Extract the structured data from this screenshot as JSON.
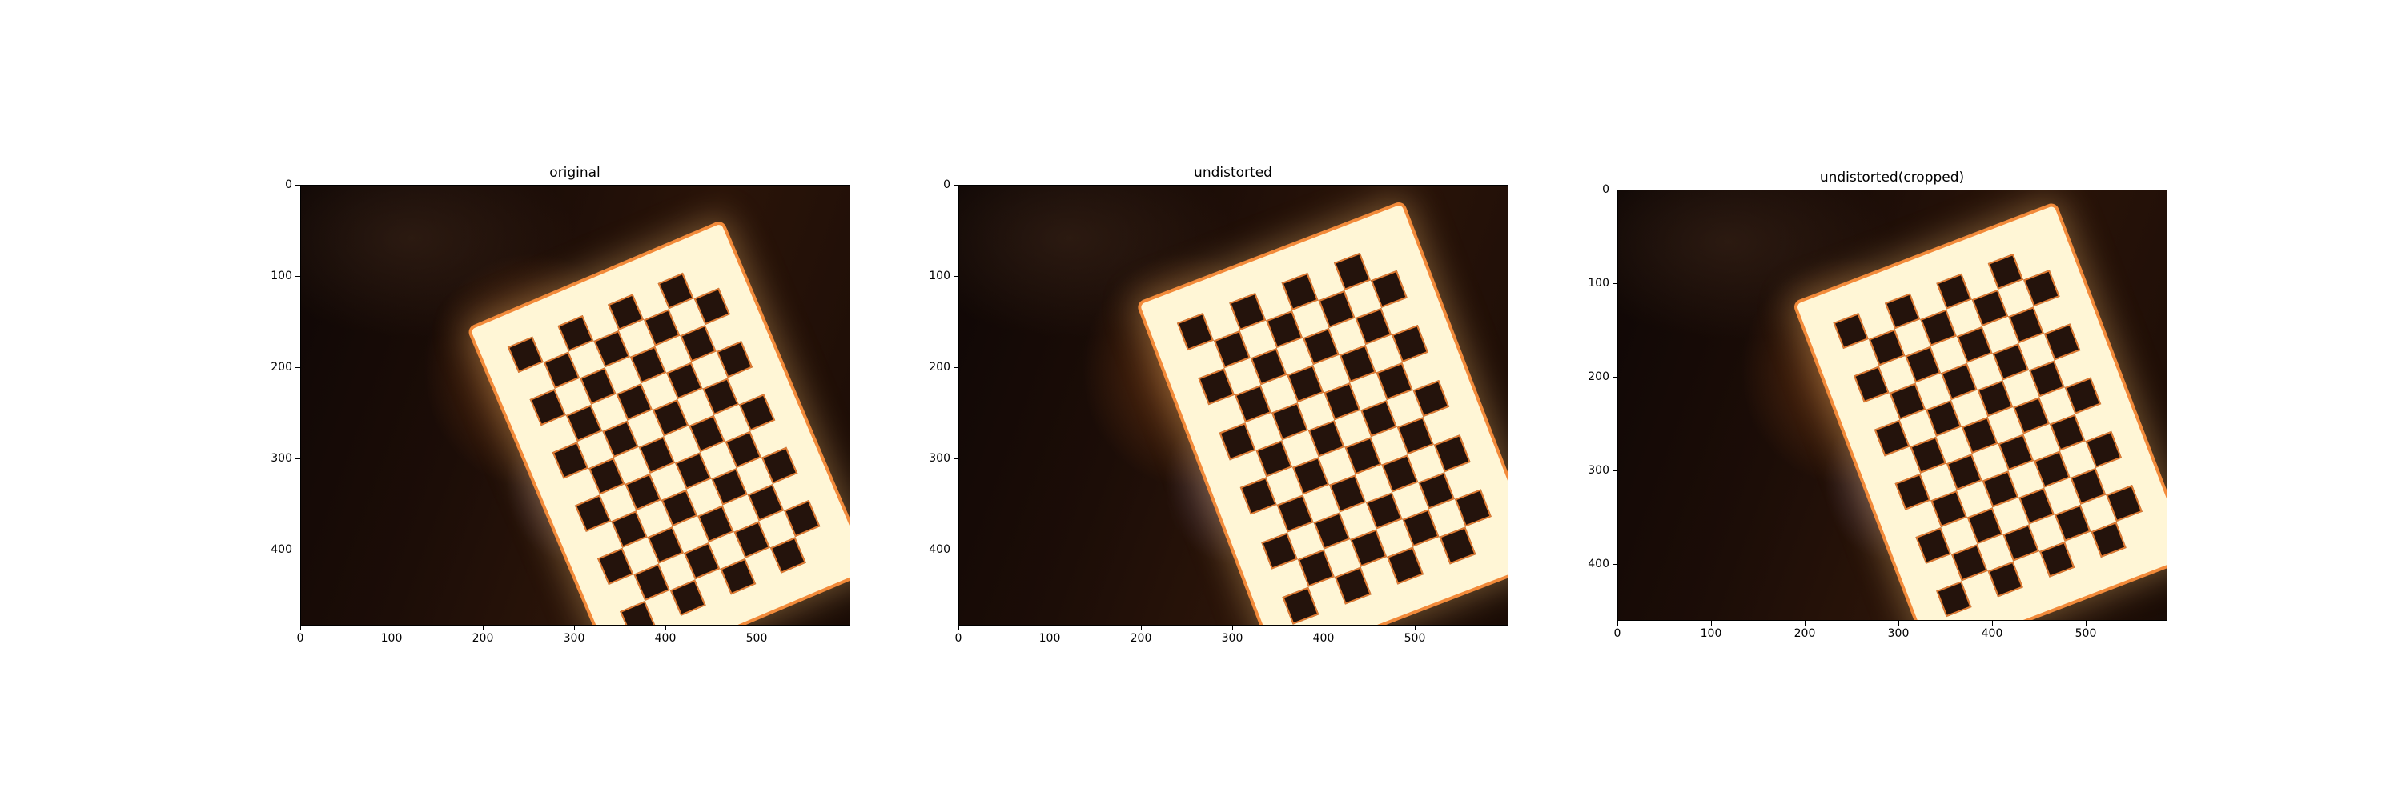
{
  "figure": {
    "panels": [
      {
        "title": "original",
        "x_ticks": [
          "0",
          "100",
          "200",
          "300",
          "400",
          "500"
        ],
        "y_ticks": [
          "0",
          "100",
          "200",
          "300",
          "400"
        ]
      },
      {
        "title": "undistorted",
        "x_ticks": [
          "0",
          "100",
          "200",
          "300",
          "400",
          "500"
        ],
        "y_ticks": [
          "0",
          "100",
          "200",
          "300",
          "400"
        ]
      },
      {
        "title": "undistorted(cropped)",
        "x_ticks": [
          "0",
          "100",
          "200",
          "300",
          "400",
          "500"
        ],
        "y_ticks": [
          "0",
          "100",
          "200",
          "300",
          "400"
        ]
      }
    ]
  },
  "colors": {
    "board_paper": "#fff6d6",
    "board_square": "#24130c",
    "board_edge": "#e07a32",
    "background_dark": "#1c0d07"
  },
  "image_subject": "checkerboard-calibration-photo"
}
